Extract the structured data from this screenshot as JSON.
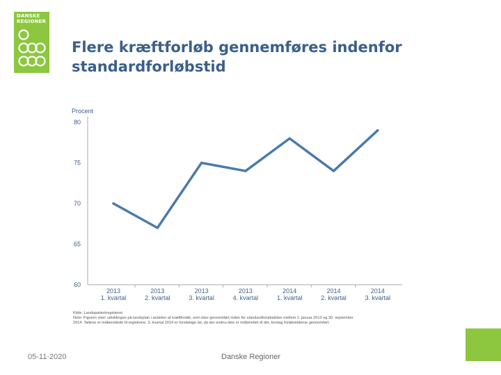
{
  "logo": {
    "line1": "DANSKE",
    "line2": "REGIONER",
    "color": "#8dc63f"
  },
  "title": "Flere kræftforløb gennemføres indenfor standardforløbstid",
  "chart_data": {
    "type": "line",
    "ylabel": "Procent",
    "ylim": [
      60,
      80
    ],
    "yticks": [
      60,
      65,
      70,
      75,
      80
    ],
    "categories": [
      {
        "year": "2013",
        "quarter": "1. kvartal"
      },
      {
        "year": "2013",
        "quarter": "2. kvartal"
      },
      {
        "year": "2013",
        "quarter": "3. kvartal"
      },
      {
        "year": "2013",
        "quarter": "4. kvartal"
      },
      {
        "year": "2014",
        "quarter": "1. kvartal"
      },
      {
        "year": "2014",
        "quarter": "2. kvartal"
      },
      {
        "year": "2014",
        "quarter": "3. kvartal"
      }
    ],
    "series": [
      {
        "values": [
          70,
          67,
          75,
          74,
          78,
          74,
          79
        ],
        "color": "#4a7aab"
      }
    ],
    "grid": false
  },
  "notes": {
    "line1": "Kilde: Landspatientregisteret.",
    "line2": "Note: Figuren viser udviklingen på landsplan i andelen af kræftforløb, som blev gennemført inden for standardforløbstiden mellem 1. januar 2013 og 30. september",
    "line3": "2014. Tallene er indberettede til registrene. 3. kvartal 2014 er foreløbige tal, da der endnu ikke er indberettet til det. forslag forløbstiderne gennemført."
  },
  "footer": {
    "date": "05-11-2020",
    "center": "Danske Regioner"
  },
  "accent": "#8dc63f"
}
